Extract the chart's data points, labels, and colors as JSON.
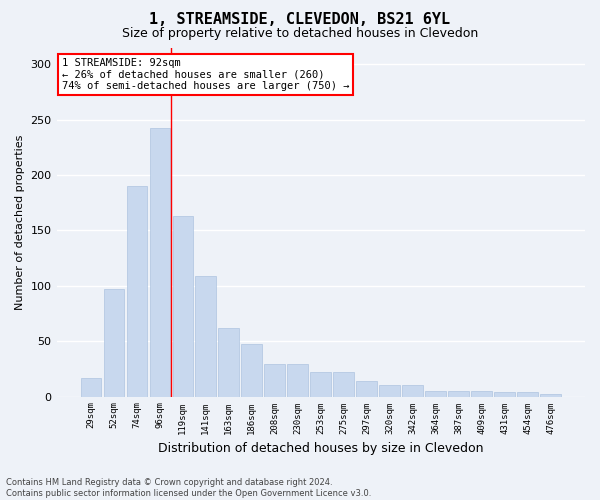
{
  "title": "1, STREAMSIDE, CLEVEDON, BS21 6YL",
  "subtitle": "Size of property relative to detached houses in Clevedon",
  "xlabel": "Distribution of detached houses by size in Clevedon",
  "ylabel": "Number of detached properties",
  "bar_color": "#c8d8ee",
  "bar_edge_color": "#aec4e0",
  "categories": [
    "29sqm",
    "52sqm",
    "74sqm",
    "96sqm",
    "119sqm",
    "141sqm",
    "163sqm",
    "186sqm",
    "208sqm",
    "230sqm",
    "253sqm",
    "275sqm",
    "297sqm",
    "320sqm",
    "342sqm",
    "364sqm",
    "387sqm",
    "409sqm",
    "431sqm",
    "454sqm",
    "476sqm"
  ],
  "values": [
    17,
    97,
    190,
    242,
    163,
    109,
    62,
    47,
    29,
    29,
    22,
    22,
    14,
    10,
    10,
    5,
    5,
    5,
    4,
    4,
    2
  ],
  "property_line_x": 3.5,
  "annotation_text": "1 STREAMSIDE: 92sqm\n← 26% of detached houses are smaller (260)\n74% of semi-detached houses are larger (750) →",
  "annotation_box_color": "white",
  "annotation_border_color": "red",
  "vline_color": "red",
  "ylim": [
    0,
    315
  ],
  "yticks": [
    0,
    50,
    100,
    150,
    200,
    250,
    300
  ],
  "footer_line1": "Contains HM Land Registry data © Crown copyright and database right 2024.",
  "footer_line2": "Contains public sector information licensed under the Open Government Licence v3.0.",
  "background_color": "#eef2f8",
  "grid_color": "white"
}
